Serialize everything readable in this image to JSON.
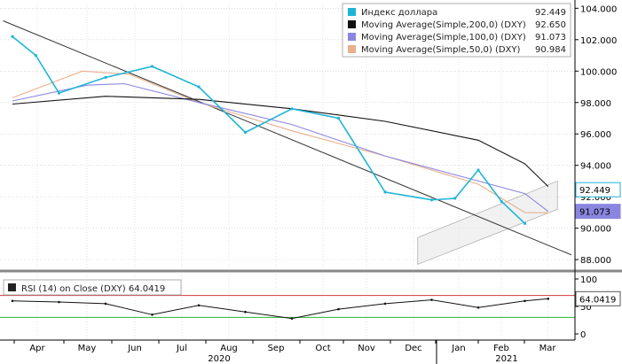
{
  "chart_data": {
    "type": "line",
    "x_axis": {
      "months": [
        "Apr",
        "May",
        "Jun",
        "Jul",
        "Aug",
        "Sep",
        "Oct",
        "Nov",
        "Dec",
        "Jan",
        "Feb",
        "Mar"
      ],
      "years": [
        "2020",
        "2021"
      ]
    },
    "price_panel": {
      "ylim": [
        87.5,
        104.3
      ],
      "yticks": [
        "104.000",
        "102.000",
        "100.000",
        "98.000",
        "96.000",
        "94.000",
        "92.000",
        "90.000",
        "88.000"
      ],
      "legend": [
        {
          "name": "Индекс доллара",
          "value": "92.449",
          "color": "#1fb5d6"
        },
        {
          "name": "Moving Average(Simple,200,0) (DXY)",
          "value": "92.650",
          "color": "#111111"
        },
        {
          "name": "Moving Average(Simple,100,0) (DXY)",
          "value": "91.073",
          "color": "#8a86e0"
        },
        {
          "name": "Moving Average(Simple,50,0) (DXY)",
          "value": "90.984",
          "color": "#e8b08c"
        }
      ],
      "price_label": "92.449",
      "ma100_label": "91.073",
      "series": [
        {
          "key": "price",
          "color": "#1fb5d6",
          "x": [
            0,
            0.5,
            1,
            2,
            3,
            4,
            5,
            6,
            7,
            8,
            9,
            9.5,
            10,
            10.5,
            11
          ],
          "y": [
            102.2,
            101.0,
            98.6,
            99.6,
            100.3,
            99.0,
            96.1,
            97.6,
            97.0,
            92.3,
            91.8,
            91.9,
            93.7,
            91.7,
            90.3
          ]
        },
        {
          "key": "ma200",
          "color": "#111111",
          "x": [
            0,
            2,
            4,
            6,
            8,
            10,
            11,
            11.5
          ],
          "y": [
            97.9,
            98.4,
            98.2,
            97.6,
            96.8,
            95.6,
            94.1,
            92.65
          ]
        },
        {
          "key": "ma100",
          "color": "#8a86e0",
          "x": [
            0,
            1.6,
            2.4,
            4,
            6,
            8,
            10,
            11,
            11.5
          ],
          "y": [
            98.1,
            99.1,
            99.2,
            98.0,
            96.6,
            94.6,
            93.0,
            92.2,
            91.07
          ]
        },
        {
          "key": "ma50",
          "color": "#e8b08c",
          "x": [
            0,
            1.5,
            2.5,
            4,
            6,
            8,
            10,
            11,
            11.5
          ],
          "y": [
            98.3,
            100.0,
            99.8,
            98.0,
            96.2,
            94.6,
            92.8,
            91.0,
            90.98
          ]
        }
      ]
    },
    "rsi_panel": {
      "legend": "RSI (14)  on Close (DXY)  64.0419",
      "ylim": [
        0,
        100
      ],
      "yticks": [
        "100",
        "50",
        "0"
      ],
      "levels": [
        70,
        30
      ],
      "value_label": "64.0419",
      "series": {
        "x": [
          0,
          1,
          2,
          3,
          4,
          5,
          6,
          7,
          8,
          9,
          10,
          11,
          11.5
        ],
        "y": [
          60,
          58,
          55,
          35,
          52,
          40,
          28,
          45,
          55,
          62,
          48,
          60,
          64
        ]
      }
    }
  }
}
